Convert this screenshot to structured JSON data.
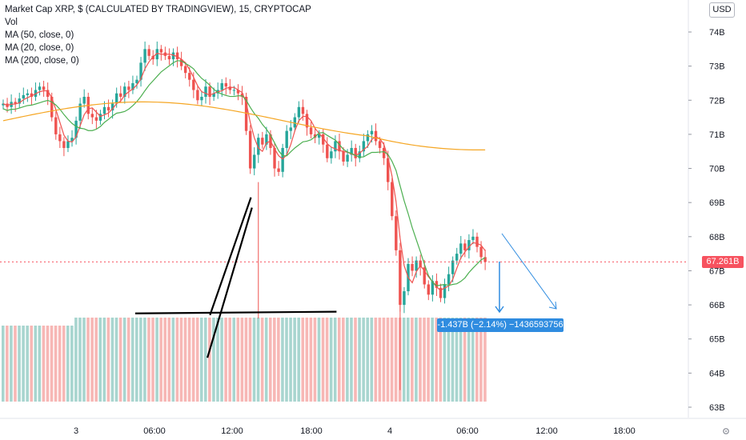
{
  "legend": {
    "title": "Market Cap XRP, $ (CALCULATED BY TRADINGVIEW), 15, CRYPTOCAP",
    "vol": "Vol",
    "ma50": "MA (50, close, 0)",
    "ma20": "MA (20, close, 0)",
    "ma200": "MA (200, close, 0)"
  },
  "currency_button": "USD",
  "last_price_label": "67.261B",
  "measure_label": "-1.437B (−2.14%) −1436593756",
  "colors": {
    "up": "#26a69a",
    "down": "#ef5350",
    "ma20": "#ef5350",
    "ma50": "#4caf50",
    "ma200": "#f5a623",
    "vol_up": "#a8d5cf",
    "vol_down": "#f7b7b5",
    "measure": "#2f8ce0",
    "price_tag": "#f7525f"
  },
  "chart_data": {
    "type": "candlestick",
    "y_ticks": [
      "74B",
      "73B",
      "72B",
      "71B",
      "70B",
      "69B",
      "68B",
      "67B",
      "66B",
      "65B",
      "64B",
      "63B"
    ],
    "ylim": [
      62.7,
      74.5
    ],
    "x_ticks": [
      "3",
      "06:00",
      "12:00",
      "18:00",
      "4",
      "06:00",
      "12:00",
      "18:00"
    ],
    "grid": false,
    "last_price": 67.261,
    "trendlines": [
      {
        "name": "support",
        "from": [
          66.7,
          65.75
        ],
        "to": [
          106.0,
          65.8
        ]
      },
      {
        "name": "wedge-upper",
        "from": [
          81.3,
          65.7
        ],
        "to": [
          89.3,
          69.15
        ]
      },
      {
        "name": "wedge-lower",
        "from": [
          80.8,
          64.45
        ],
        "to": [
          89.5,
          68.85
        ]
      }
    ],
    "projection": [
      {
        "from": [
          84.5,
          68.1
        ],
        "to": [
          87.0,
          65.8
        ]
      },
      {
        "from": [
          84.3,
          67.3
        ],
        "to": [
          84.3,
          65.8
        ]
      }
    ],
    "closes": [
      71.9,
      71.8,
      71.95,
      71.9,
      72.05,
      72.15,
      72.2,
      72.1,
      72.3,
      72.4,
      72.3,
      72.1,
      71.5,
      71.0,
      70.8,
      70.6,
      70.8,
      70.9,
      71.4,
      71.9,
      72.1,
      71.6,
      71.5,
      71.4,
      71.6,
      71.8,
      71.7,
      71.9,
      72.2,
      72.1,
      72.4,
      72.3,
      72.5,
      72.6,
      73.1,
      73.5,
      73.3,
      73.2,
      73.5,
      73.4,
      73.3,
      73.2,
      73.4,
      73.2,
      73.0,
      72.8,
      72.6,
      72.3,
      72.0,
      72.1,
      72.4,
      72.1,
      72.2,
      72.3,
      72.5,
      72.4,
      72.3,
      72.3,
      72.2,
      72.1,
      71.1,
      70.0,
      70.4,
      70.9,
      70.7,
      71.0,
      70.6,
      70.0,
      69.9,
      70.6,
      71.1,
      71.2,
      71.5,
      71.8,
      71.6,
      71.2,
      71.0,
      70.9,
      71.0,
      70.7,
      70.3,
      70.5,
      70.8,
      70.5,
      70.2,
      70.4,
      70.6,
      70.3,
      70.5,
      70.8,
      71.0,
      71.1,
      70.8,
      70.6,
      70.3,
      69.6,
      68.6,
      67.6,
      66.0,
      66.4,
      67.2,
      67.0,
      67.3,
      67.1,
      66.6,
      66.3,
      66.7,
      66.5,
      66.2,
      66.6,
      66.9,
      67.3,
      67.5,
      67.8,
      67.6,
      67.9,
      68.0,
      67.7,
      67.4,
      67.26
    ]
  }
}
